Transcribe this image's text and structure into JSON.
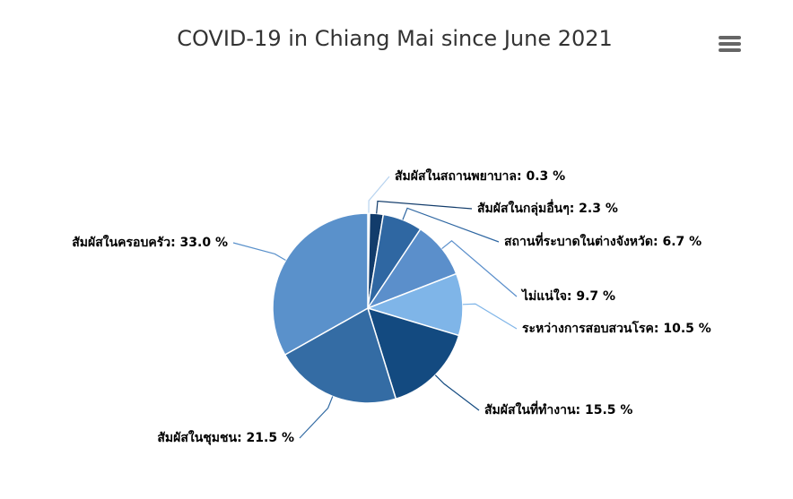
{
  "chart_data": {
    "type": "pie",
    "title": "COVID-19 in Chiang Mai since June 2021",
    "values": [
      0.3,
      2.3,
      6.7,
      9.7,
      10.5,
      15.5,
      21.5,
      33.0
    ],
    "value_labels": [
      "สัมผัสในสถานพยาบาล: 0.3 %",
      "สัมผัสในกลุ่มอื่นๆ: 2.3 %",
      "สถานที่ระบาดในต่างจังหวัด: 6.7 %",
      "ไม่แน่ใจ: 9.7 %",
      "ระหว่างการสอบสวนโรค: 10.5 %",
      "สัมผัสในที่ทำงาน: 15.5 %",
      "สัมผัสในชุมชน: 21.5 %",
      "สัมผัสในครอบครัว: 33.0 %"
    ],
    "colors": [
      "#b7d3ef",
      "#123c6b",
      "#2f67a2",
      "#5b8fcb",
      "#7fb5e8",
      "#134a80",
      "#346ca4",
      "#5a91cb"
    ]
  }
}
